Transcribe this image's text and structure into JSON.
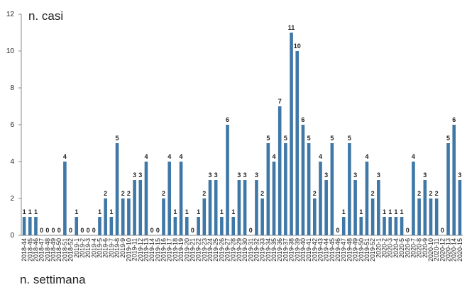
{
  "chart_data": {
    "type": "bar",
    "title": "n. casi",
    "x_label": "n. settimana",
    "categories": [
      "2018-44",
      "2018-45",
      "2018-46",
      "2018-47",
      "2018-48",
      "2018-49",
      "2018-50",
      "2018-51",
      "2018-52",
      "2019-1",
      "2019-2",
      "2019-3",
      "2019-4",
      "2019-5",
      "2019-6",
      "2019-7",
      "2019-8",
      "2019-9",
      "2019-10",
      "2019-11",
      "2019-12",
      "2019-13",
      "2019-14",
      "2019-15",
      "2019-16",
      "2019-17",
      "2019-18",
      "2019-19",
      "2019-20",
      "2019-21",
      "2019-22",
      "2019-23",
      "2019-24",
      "2019-25",
      "2019-26",
      "2019-27",
      "2019-28",
      "2019-29",
      "2019-30",
      "2019-31",
      "2019-32",
      "2019-33",
      "2019-34",
      "2019-35",
      "2019-36",
      "2019-37",
      "2019-38",
      "2019-39",
      "2019-40",
      "2019-41",
      "2019-42",
      "2019-43",
      "2019-44",
      "2019-45",
      "2019-46",
      "2019-47",
      "2019-48",
      "2019-49",
      "2019-50",
      "2019-51",
      "2019-52",
      "2020-1",
      "2020-2",
      "2020-3",
      "2020-4",
      "2020-5",
      "2020-6",
      "2020-7",
      "2020-8",
      "2020-9",
      "2020-10",
      "2020-11",
      "2020-12",
      "2020-13",
      "2020-14",
      "2020-15"
    ],
    "values": [
      1,
      1,
      1,
      0,
      0,
      0,
      0,
      4,
      0,
      1,
      0,
      0,
      0,
      1,
      2,
      1,
      5,
      2,
      2,
      3,
      3,
      4,
      0,
      0,
      2,
      4,
      1,
      4,
      1,
      0,
      1,
      2,
      3,
      3,
      1,
      6,
      1,
      3,
      3,
      0,
      3,
      2,
      5,
      4,
      7,
      5,
      11,
      10,
      6,
      5,
      2,
      4,
      3,
      5,
      0,
      1,
      5,
      3,
      1,
      4,
      2,
      3,
      1,
      1,
      1,
      1,
      0,
      4,
      2,
      3,
      2,
      2,
      0,
      5,
      6,
      3
    ],
    "color": "#3f77a6",
    "ylim": [
      0,
      12
    ],
    "yticks": [
      0,
      2,
      4,
      6,
      8,
      10,
      12
    ],
    "grid": false
  }
}
